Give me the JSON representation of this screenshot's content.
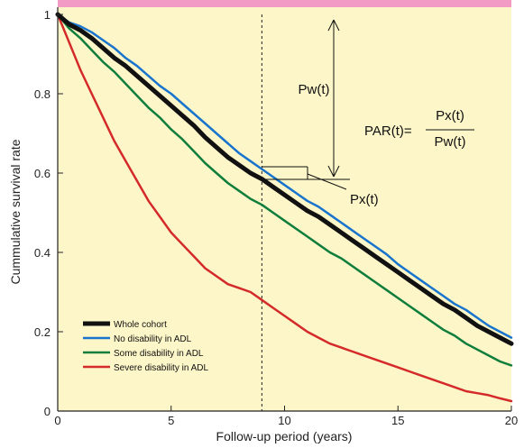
{
  "chart_data": {
    "type": "line",
    "xlabel": "Follow-up period (years)",
    "ylabel": "Cummulative survival rate",
    "xlim": [
      0,
      20
    ],
    "ylim": [
      0,
      1
    ],
    "xticks": [
      0,
      5,
      10,
      15,
      20
    ],
    "yticks": [
      0,
      0.2,
      0.4,
      0.6,
      0.8,
      1
    ],
    "ytick_labels": [
      "0",
      "0.2",
      "0.4",
      "0.6",
      "0.8",
      "1"
    ],
    "grid": false,
    "legend_position": "bottom-left",
    "reference_line_x": 9,
    "series": [
      {
        "name": "Whole cohort",
        "color": "#111111",
        "width": 5,
        "x": [
          0,
          0.5,
          1,
          1.5,
          2,
          2.5,
          3,
          3.5,
          4,
          4.5,
          5,
          5.5,
          6,
          6.5,
          7,
          7.5,
          8,
          8.5,
          9,
          9.5,
          10,
          10.5,
          11,
          11.5,
          12,
          12.5,
          13,
          13.5,
          14,
          14.5,
          15,
          15.5,
          16,
          16.5,
          17,
          17.5,
          18,
          18.5,
          19,
          19.5,
          20
        ],
        "y": [
          1.0,
          0.975,
          0.96,
          0.94,
          0.915,
          0.89,
          0.87,
          0.845,
          0.82,
          0.795,
          0.77,
          0.745,
          0.72,
          0.69,
          0.665,
          0.64,
          0.62,
          0.6,
          0.585,
          0.565,
          0.545,
          0.525,
          0.505,
          0.49,
          0.47,
          0.45,
          0.43,
          0.41,
          0.39,
          0.37,
          0.35,
          0.33,
          0.31,
          0.29,
          0.27,
          0.255,
          0.235,
          0.215,
          0.2,
          0.185,
          0.17
        ]
      },
      {
        "name": "No disability in ADL",
        "color": "#1874cd",
        "width": 2.5,
        "x": [
          0,
          0.5,
          1,
          1.5,
          2,
          2.5,
          3,
          3.5,
          4,
          4.5,
          5,
          5.5,
          6,
          6.5,
          7,
          7.5,
          8,
          8.5,
          9,
          9.5,
          10,
          10.5,
          11,
          11.5,
          12,
          12.5,
          13,
          13.5,
          14,
          14.5,
          15,
          15.5,
          16,
          16.5,
          17,
          17.5,
          18,
          18.5,
          19,
          19.5,
          20
        ],
        "y": [
          1.0,
          0.98,
          0.97,
          0.955,
          0.935,
          0.915,
          0.89,
          0.87,
          0.845,
          0.82,
          0.8,
          0.775,
          0.75,
          0.725,
          0.7,
          0.675,
          0.65,
          0.63,
          0.61,
          0.59,
          0.57,
          0.55,
          0.53,
          0.515,
          0.495,
          0.475,
          0.455,
          0.435,
          0.415,
          0.395,
          0.37,
          0.35,
          0.33,
          0.31,
          0.29,
          0.27,
          0.255,
          0.235,
          0.215,
          0.2,
          0.185
        ]
      },
      {
        "name": "Some disability in ADL",
        "color": "#0f7d3c",
        "width": 2.5,
        "x": [
          0,
          0.5,
          1,
          1.5,
          2,
          2.5,
          3,
          3.5,
          4,
          4.5,
          5,
          5.5,
          6,
          6.5,
          7,
          7.5,
          8,
          8.5,
          9,
          9.5,
          10,
          10.5,
          11,
          11.5,
          12,
          12.5,
          13,
          13.5,
          14,
          14.5,
          15,
          15.5,
          16,
          16.5,
          17,
          17.5,
          18,
          18.5,
          19,
          19.5,
          20
        ],
        "y": [
          1.0,
          0.965,
          0.94,
          0.91,
          0.88,
          0.855,
          0.825,
          0.795,
          0.765,
          0.74,
          0.71,
          0.685,
          0.655,
          0.625,
          0.6,
          0.575,
          0.555,
          0.535,
          0.52,
          0.5,
          0.48,
          0.46,
          0.44,
          0.42,
          0.4,
          0.385,
          0.365,
          0.345,
          0.325,
          0.305,
          0.285,
          0.265,
          0.245,
          0.225,
          0.205,
          0.19,
          0.17,
          0.155,
          0.14,
          0.125,
          0.115
        ]
      },
      {
        "name": "Severe disability in ADL",
        "color": "#d42a2a",
        "width": 2.5,
        "x": [
          0,
          0.5,
          1,
          1.5,
          2,
          2.5,
          3,
          3.5,
          4,
          4.5,
          5,
          5.5,
          6,
          6.5,
          7,
          7.5,
          8,
          8.5,
          9,
          9.5,
          10,
          10.5,
          11,
          11.5,
          12,
          12.5,
          13,
          13.5,
          14,
          14.5,
          15,
          15.5,
          16,
          16.5,
          17,
          17.5,
          18,
          18.5,
          19,
          19.5,
          20
        ],
        "y": [
          1.0,
          0.93,
          0.86,
          0.8,
          0.74,
          0.68,
          0.63,
          0.58,
          0.53,
          0.49,
          0.45,
          0.42,
          0.39,
          0.36,
          0.34,
          0.32,
          0.31,
          0.3,
          0.28,
          0.26,
          0.24,
          0.22,
          0.2,
          0.185,
          0.17,
          0.16,
          0.15,
          0.14,
          0.13,
          0.12,
          0.11,
          0.1,
          0.09,
          0.08,
          0.07,
          0.06,
          0.05,
          0.045,
          0.04,
          0.032,
          0.025
        ]
      }
    ],
    "annotations": {
      "pw_label": "Pw(t)",
      "px_label": "Px(t)",
      "par_prefix": "PAR(t)=",
      "par_numerator": "Px(t)",
      "par_denominator": "Pw(t)"
    }
  },
  "colors": {
    "plot_background": "#fdf6c8",
    "top_band": "#f29bc4",
    "axis": "#222222",
    "reference_line": "#222222"
  }
}
